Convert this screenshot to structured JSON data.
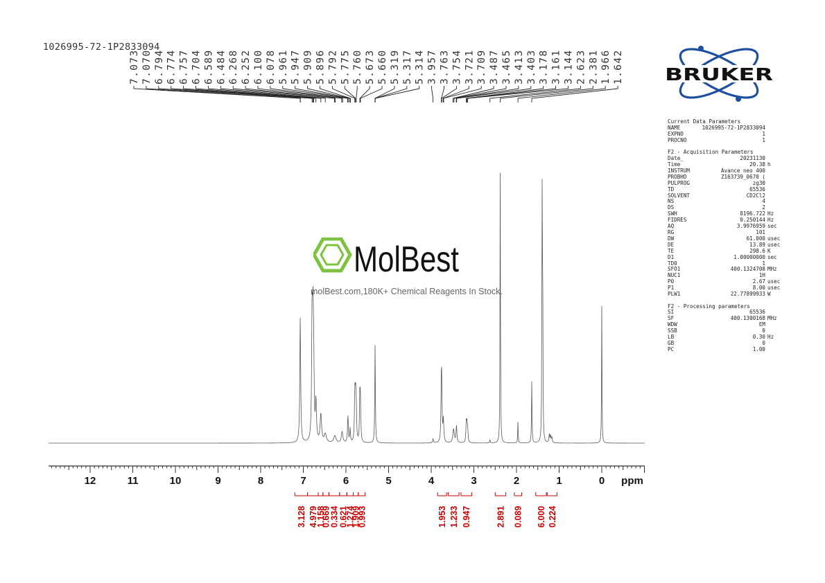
{
  "sample_name": "1026995-72-1P2833094",
  "watermark": {
    "brand": "MolBest",
    "tagline": "molBest.com,180K+ Chemical Reagents In Stock."
  },
  "bruker_logo_text": "BRUKER",
  "colors": {
    "spectrum": "#555555",
    "integral": "#cc0000",
    "watermark_green": "#7cc33f",
    "bruker_blue": "#1e4f9e",
    "bruker_text": "#111111"
  },
  "parameters": [
    {
      "rows": [
        {
          "k": "Current Data Parameters",
          "v": "",
          "u": ""
        },
        {
          "k": "NAME",
          "v": "1026995-72-1P2833094",
          "u": ""
        },
        {
          "k": "EXPNO",
          "v": "1",
          "u": ""
        },
        {
          "k": "PROCNO",
          "v": "1",
          "u": ""
        }
      ]
    },
    {
      "rows": [
        {
          "k": "F2 - Acquisition Parameters",
          "v": "",
          "u": ""
        },
        {
          "k": "Date_",
          "v": "20231130",
          "u": ""
        },
        {
          "k": "Time",
          "v": "20.38",
          "u": "h"
        },
        {
          "k": "INSTRUM",
          "v": "Avance neo 400",
          "u": ""
        },
        {
          "k": "PROBHD",
          "v": "Z163739_0670 (",
          "u": ""
        },
        {
          "k": "PULPROG",
          "v": "zg30",
          "u": ""
        },
        {
          "k": "TD",
          "v": "65536",
          "u": ""
        },
        {
          "k": "SOLVENT",
          "v": "CD2Cl2",
          "u": ""
        },
        {
          "k": "NS",
          "v": "4",
          "u": ""
        },
        {
          "k": "DS",
          "v": "2",
          "u": ""
        },
        {
          "k": "SWH",
          "v": "8196.722",
          "u": "Hz"
        },
        {
          "k": "FIDRES",
          "v": "0.250144",
          "u": "Hz"
        },
        {
          "k": "AQ",
          "v": "3.9976959",
          "u": "sec"
        },
        {
          "k": "RG",
          "v": "101",
          "u": ""
        },
        {
          "k": "DW",
          "v": "61.000",
          "u": "usec"
        },
        {
          "k": "DE",
          "v": "13.89",
          "u": "usec"
        },
        {
          "k": "TE",
          "v": "298.6",
          "u": "K"
        },
        {
          "k": "D1",
          "v": "1.00000000",
          "u": "sec"
        },
        {
          "k": "TD0",
          "v": "1",
          "u": ""
        },
        {
          "k": "SFO1",
          "v": "400.1324708",
          "u": "MHz"
        },
        {
          "k": "NUC1",
          "v": "1H",
          "u": ""
        },
        {
          "k": "P0",
          "v": "2.67",
          "u": "usec"
        },
        {
          "k": "P1",
          "v": "8.00",
          "u": "usec"
        },
        {
          "k": "PLW1",
          "v": "22.77899933",
          "u": "W"
        }
      ]
    },
    {
      "rows": [
        {
          "k": "F2 - Processing parameters",
          "v": "",
          "u": ""
        },
        {
          "k": "SI",
          "v": "65536",
          "u": ""
        },
        {
          "k": "SF",
          "v": "400.1300168",
          "u": "MHz"
        },
        {
          "k": "WDW",
          "v": "EM",
          "u": ""
        },
        {
          "k": "SSB",
          "v": "0",
          "u": ""
        },
        {
          "k": "LB",
          "v": "0.30",
          "u": "Hz"
        },
        {
          "k": "GB",
          "v": "0",
          "u": ""
        },
        {
          "k": "PC",
          "v": "1.00",
          "u": ""
        }
      ]
    }
  ],
  "chart_data": {
    "type": "line",
    "title": "",
    "xlabel": "ppm",
    "ylabel": "",
    "xlim": [
      13.0,
      -1.0
    ],
    "x_reversed": true,
    "x_ticks": [
      12,
      11,
      10,
      9,
      8,
      7,
      6,
      5,
      4,
      3,
      2,
      1,
      0
    ],
    "x_tick_labels": [
      "12",
      "11",
      "10",
      "9",
      "8",
      "7",
      "6",
      "5",
      "4",
      "3",
      "2",
      "1",
      "0",
      "ppm"
    ],
    "peak_labels": [
      "7.073",
      "7.070",
      "6.794",
      "6.774",
      "6.757",
      "6.704",
      "6.589",
      "6.484",
      "6.268",
      "6.252",
      "6.100",
      "6.078",
      "5.961",
      "5.947",
      "5.909",
      "5.896",
      "5.792",
      "5.775",
      "5.760",
      "5.673",
      "5.660",
      "5.319",
      "5.317",
      "5.314",
      "3.957",
      "3.763",
      "3.754",
      "3.721",
      "3.709",
      "3.487",
      "3.465",
      "3.413",
      "3.403",
      "3.178",
      "3.161",
      "3.144",
      "2.623",
      "2.381",
      "1.966",
      "1.642"
    ],
    "peaks": [
      {
        "ppm": 7.072,
        "height": 0.45,
        "width": 0.012
      },
      {
        "ppm": 6.794,
        "height": 0.43,
        "width": 0.012
      },
      {
        "ppm": 6.774,
        "height": 0.36,
        "width": 0.012
      },
      {
        "ppm": 6.757,
        "height": 0.26,
        "width": 0.012
      },
      {
        "ppm": 6.704,
        "height": 0.14,
        "width": 0.014
      },
      {
        "ppm": 6.589,
        "height": 0.1,
        "width": 0.02
      },
      {
        "ppm": 6.484,
        "height": 0.03,
        "width": 0.03
      },
      {
        "ppm": 6.26,
        "height": 0.025,
        "width": 0.03
      },
      {
        "ppm": 6.09,
        "height": 0.04,
        "width": 0.02
      },
      {
        "ppm": 5.954,
        "height": 0.1,
        "width": 0.01
      },
      {
        "ppm": 5.903,
        "height": 0.05,
        "width": 0.01
      },
      {
        "ppm": 5.792,
        "height": 0.17,
        "width": 0.01
      },
      {
        "ppm": 5.775,
        "height": 0.14,
        "width": 0.01
      },
      {
        "ppm": 5.76,
        "height": 0.12,
        "width": 0.01
      },
      {
        "ppm": 5.673,
        "height": 0.16,
        "width": 0.01
      },
      {
        "ppm": 5.66,
        "height": 0.12,
        "width": 0.01
      },
      {
        "ppm": 5.317,
        "height": 0.35,
        "width": 0.008
      },
      {
        "ppm": 3.957,
        "height": 0.015,
        "width": 0.01
      },
      {
        "ppm": 3.763,
        "height": 0.18,
        "width": 0.01
      },
      {
        "ppm": 3.754,
        "height": 0.15,
        "width": 0.01
      },
      {
        "ppm": 3.715,
        "height": 0.08,
        "width": 0.012
      },
      {
        "ppm": 3.476,
        "height": 0.05,
        "width": 0.02
      },
      {
        "ppm": 3.408,
        "height": 0.06,
        "width": 0.012
      },
      {
        "ppm": 3.178,
        "height": 0.07,
        "width": 0.01
      },
      {
        "ppm": 3.161,
        "height": 0.06,
        "width": 0.01
      },
      {
        "ppm": 3.144,
        "height": 0.04,
        "width": 0.01
      },
      {
        "ppm": 2.623,
        "height": 0.012,
        "width": 0.008
      },
      {
        "ppm": 2.381,
        "height": 1.0,
        "width": 0.006
      },
      {
        "ppm": 1.966,
        "height": 0.08,
        "width": 0.006
      },
      {
        "ppm": 1.642,
        "height": 0.22,
        "width": 0.007
      },
      {
        "ppm": 1.4,
        "height": 0.88,
        "width": 0.006
      },
      {
        "ppm": 1.386,
        "height": 0.65,
        "width": 0.006
      },
      {
        "ppm": 1.23,
        "height": 0.03,
        "width": 0.01
      },
      {
        "ppm": 1.2,
        "height": 0.025,
        "width": 0.01
      },
      {
        "ppm": 1.17,
        "height": 0.02,
        "width": 0.01
      },
      {
        "ppm": 0.0,
        "height": 0.49,
        "width": 0.006
      }
    ],
    "integrals": [
      {
        "label": "3.128",
        "from": 7.2,
        "to": 6.9
      },
      {
        "label": "4.979",
        "from": 6.9,
        "to": 6.65
      },
      {
        "label": "1.158",
        "from": 6.65,
        "to": 6.54
      },
      {
        "label": "0.669",
        "from": 6.54,
        "to": 6.4
      },
      {
        "label": "0.334",
        "from": 6.4,
        "to": 6.15
      },
      {
        "label": "0.621",
        "from": 6.15,
        "to": 5.98
      },
      {
        "label": "1.274",
        "from": 5.98,
        "to": 5.83
      },
      {
        "label": "1.909",
        "from": 5.83,
        "to": 5.71
      },
      {
        "label": "0.993",
        "from": 5.71,
        "to": 5.55
      },
      {
        "label": "1.953",
        "from": 3.85,
        "to": 3.64
      },
      {
        "label": "1.233",
        "from": 3.6,
        "to": 3.35
      },
      {
        "label": "0.947",
        "from": 3.3,
        "to": 3.05
      },
      {
        "label": "2.891",
        "from": 2.5,
        "to": 2.25
      },
      {
        "label": "0.089",
        "from": 2.05,
        "to": 1.88
      },
      {
        "label": "6.000",
        "from": 1.55,
        "to": 1.3
      },
      {
        "label": "0.224",
        "from": 1.28,
        "to": 1.05
      }
    ]
  }
}
